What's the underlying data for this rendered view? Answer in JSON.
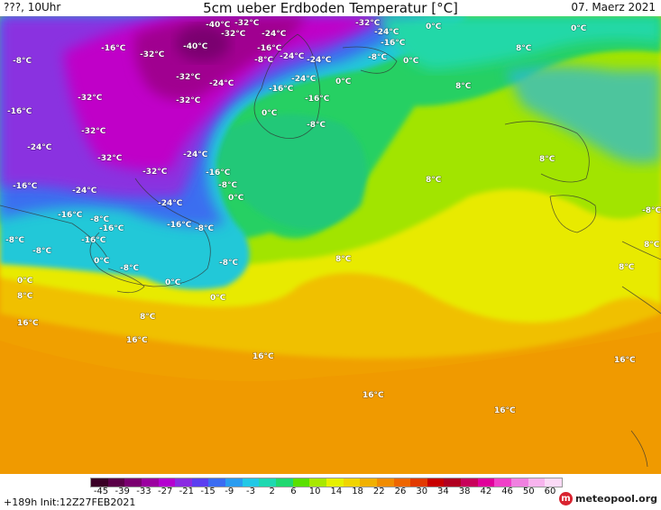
{
  "header": {
    "left_text": "???, 10Uhr",
    "title": "5cm ueber Erdboden Temperatur [°C]",
    "date": "07. Maerz 2021"
  },
  "map": {
    "labels": [
      "-40°C",
      "-32°C",
      "-32°C",
      "-24°C",
      "-32°C",
      "-24°C",
      "0°C",
      "0°C",
      "-16°C",
      "-40°C",
      "-16°C",
      "-24°C",
      "-16°C",
      "8°C",
      "-8°C",
      "-32°C",
      "-8°C",
      "-24°C",
      "-8°C",
      "0°C",
      "-32°C",
      "-24°C",
      "-16°C",
      "0°C",
      "8°C",
      "-24°C",
      "-32°C",
      "-16°C",
      "-16°C",
      "0°C",
      "-8°C",
      "-32°C",
      "-32°C",
      "-24°C",
      "-32°C",
      "-16°C",
      "-32°C",
      "-24°C",
      "8°C",
      "-16°C",
      "-24°C",
      "-16°C",
      "-8°C",
      "0°C",
      "8°C",
      "-24°C",
      "-16°C",
      "-8°C",
      "-16°C",
      "-8°C",
      "-8°C",
      "-16°C",
      "-8°C",
      "-8°C",
      "8°C",
      "0°C",
      "-8°C",
      "-8°C",
      "8°C",
      "0°C",
      "0°C",
      "0°C",
      "8°C",
      "8°C",
      "16°C",
      "16°C",
      "8°C",
      "16°C",
      "16°C",
      "16°C"
    ]
  },
  "legend": {
    "colors": [
      "#3a0026",
      "#5a0048",
      "#7a0070",
      "#9b00a0",
      "#b400d0",
      "#8a2be2",
      "#5a3ef0",
      "#3a6cf2",
      "#2a9cf0",
      "#22c8e6",
      "#1ed8b0",
      "#20d870",
      "#5ae000",
      "#a8e800",
      "#e6f000",
      "#f0d400",
      "#f0b000",
      "#f08c00",
      "#ee6600",
      "#e23a00",
      "#c80000",
      "#b00020",
      "#c8005a",
      "#e0009a",
      "#f040c8",
      "#f080e0",
      "#f8b4ee",
      "#fbdaf6"
    ],
    "ticks": [
      "-45",
      "-39",
      "-33",
      "-27",
      "-21",
      "-15",
      "-9",
      "-3",
      "2",
      "6",
      "10",
      "14",
      "18",
      "22",
      "26",
      "30",
      "34",
      "38",
      "42",
      "46",
      "50",
      "60"
    ]
  },
  "footer": {
    "run_info": "+189h Init:12Z27FEB2021",
    "brand_icon": "m",
    "brand_text": "meteopool.org"
  }
}
